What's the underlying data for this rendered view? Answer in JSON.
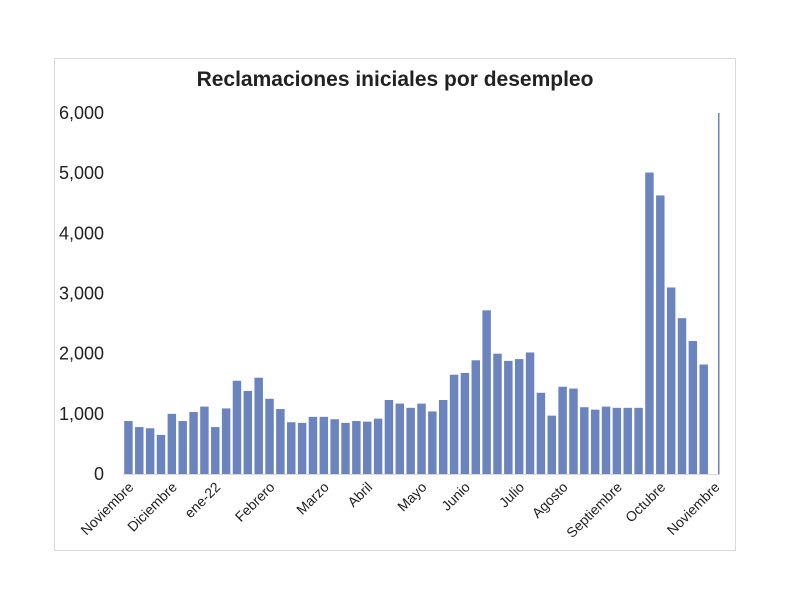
{
  "chart_data": {
    "type": "bar",
    "title": "Reclamaciones iniciales por desempleo",
    "xlabel": "",
    "ylabel": "",
    "ylim": [
      0,
      6000
    ],
    "yticks": [
      "0",
      "1,000",
      "2,000",
      "3,000",
      "4,000",
      "5,000",
      "6,000"
    ],
    "ytick_values": [
      0,
      1000,
      2000,
      3000,
      4000,
      5000,
      6000
    ],
    "color": "#6b84bd",
    "grid": false,
    "x_labels": [
      {
        "label": "Noviembre",
        "index": 0
      },
      {
        "label": "Diciembre",
        "index": 4
      },
      {
        "label": "ene-22",
        "index": 8
      },
      {
        "label": "Febrero",
        "index": 13
      },
      {
        "label": "Marzo",
        "index": 18
      },
      {
        "label": "Abril",
        "index": 22
      },
      {
        "label": "Mayo",
        "index": 27
      },
      {
        "label": "Junio",
        "index": 31
      },
      {
        "label": "Julio",
        "index": 36
      },
      {
        "label": "Agosto",
        "index": 40
      },
      {
        "label": "Septiembre",
        "index": 45
      },
      {
        "label": "Octubre",
        "index": 49
      },
      {
        "label": "Noviembre",
        "index": 54
      }
    ],
    "values": [
      880,
      780,
      760,
      650,
      1000,
      880,
      1030,
      1120,
      780,
      1090,
      1550,
      1380,
      1600,
      1250,
      1080,
      860,
      850,
      950,
      950,
      910,
      850,
      880,
      870,
      920,
      1230,
      1170,
      1100,
      1170,
      1040,
      1230,
      1650,
      1680,
      1890,
      2720,
      2000,
      1880,
      1910,
      2020,
      1350,
      970,
      1450,
      1420,
      1110,
      1070,
      1120,
      1100,
      1100,
      1100,
      5010,
      4630,
      3100,
      2590,
      2210,
      1820,
      6000
    ]
  }
}
